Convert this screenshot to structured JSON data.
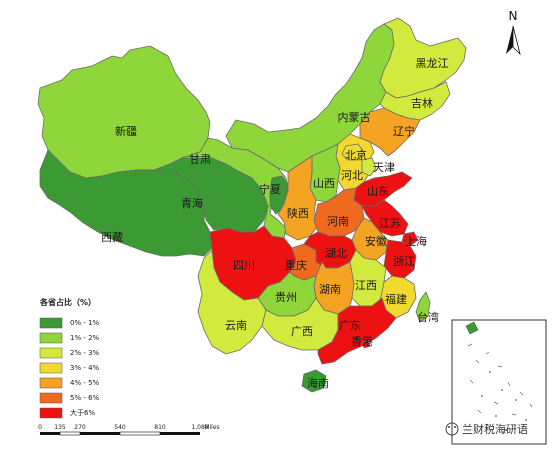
{
  "legend": {
    "title": "各省占比（%）",
    "items": [
      {
        "label": "0% - 1%",
        "color": "#3c9a34"
      },
      {
        "label": "1% - 2%",
        "color": "#8fd63a"
      },
      {
        "label": "2% - 3%",
        "color": "#d2ea3d"
      },
      {
        "label": "3% - 4%",
        "color": "#f2d930"
      },
      {
        "label": "4% - 5%",
        "color": "#f4a323"
      },
      {
        "label": "5% - 6%",
        "color": "#ef6a1e"
      },
      {
        "label": "大于6%",
        "color": "#ee1111"
      }
    ]
  },
  "scale_bar": {
    "ticks": [
      "0",
      "135",
      "270",
      "540",
      "810",
      "1,080"
    ],
    "unit": "Miles"
  },
  "north_label": "N",
  "watermark": "兰财税海研语",
  "provinces": [
    {
      "id": "xinjiang",
      "name": "新疆",
      "band": 1
    },
    {
      "id": "xizang",
      "name": "西藏",
      "band": 0
    },
    {
      "id": "qinghai",
      "name": "青海",
      "band": 0
    },
    {
      "id": "gansu",
      "name": "甘肃",
      "band": 1
    },
    {
      "id": "neimenggu",
      "name": "内蒙古",
      "band": 1
    },
    {
      "id": "heilongjiang",
      "name": "黑龙江",
      "band": 2
    },
    {
      "id": "jilin",
      "name": "吉林",
      "band": 2
    },
    {
      "id": "liaoning",
      "name": "辽宁",
      "band": 4
    },
    {
      "id": "beijing",
      "name": "北京",
      "band": 3
    },
    {
      "id": "tianjin",
      "name": "天津",
      "band": 2
    },
    {
      "id": "hebei",
      "name": "河北",
      "band": 3
    },
    {
      "id": "shanxi",
      "name": "山西",
      "band": 1
    },
    {
      "id": "ningxia",
      "name": "宁夏",
      "band": 0
    },
    {
      "id": "shaanxi",
      "name": "陕西",
      "band": 4
    },
    {
      "id": "shandong",
      "name": "山东",
      "band": 6
    },
    {
      "id": "henan",
      "name": "河南",
      "band": 5
    },
    {
      "id": "jiangsu",
      "name": "江苏",
      "band": 6
    },
    {
      "id": "anhui",
      "name": "安徽",
      "band": 4
    },
    {
      "id": "shanghai",
      "name": "上海",
      "band": 6
    },
    {
      "id": "zhejiang",
      "name": "浙江",
      "band": 6
    },
    {
      "id": "sichuan",
      "name": "四川",
      "band": 6
    },
    {
      "id": "chongqing",
      "name": "重庆",
      "band": 5
    },
    {
      "id": "hubei",
      "name": "湖北",
      "band": 6
    },
    {
      "id": "hunan",
      "name": "湖南",
      "band": 4
    },
    {
      "id": "jiangxi",
      "name": "江西",
      "band": 2
    },
    {
      "id": "fujian",
      "name": "福建",
      "band": 3
    },
    {
      "id": "guizhou",
      "name": "贵州",
      "band": 1
    },
    {
      "id": "yunnan",
      "name": "云南",
      "band": 2
    },
    {
      "id": "guangxi",
      "name": "广西",
      "band": 2
    },
    {
      "id": "guangdong",
      "name": "广东",
      "band": 6
    },
    {
      "id": "xianggang",
      "name": "香港",
      "band": 6
    },
    {
      "id": "hainan",
      "name": "海南",
      "band": 0
    },
    {
      "id": "taiwan",
      "name": "台湾",
      "band": 1
    }
  ]
}
